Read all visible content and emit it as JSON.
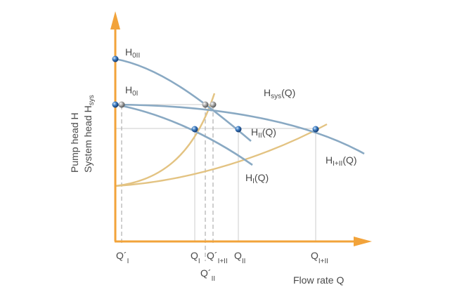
{
  "axes": {
    "y_label_line1": "Pump head H",
    "y_label_line2_main": "System head H",
    "y_label_line2_sub": "sys",
    "x_label": "Flow rate Q"
  },
  "curves": {
    "H0II": {
      "main": "H",
      "sub": "0II"
    },
    "H0I": {
      "main": "H",
      "sub": "0I"
    },
    "Hsys": {
      "main": "H",
      "sub": "sys",
      "tail": "(Q)"
    },
    "HII": {
      "main": "H",
      "sub": "II",
      "tail": "(Q)"
    },
    "HI": {
      "main": "H",
      "sub": "I",
      "tail": "(Q)"
    },
    "HIplusII": {
      "main": "H",
      "sub": "I+II",
      "tail": "(Q)"
    }
  },
  "x_ticks": {
    "q_prime_I": {
      "main": "Q´",
      "sub": "I"
    },
    "q_I": {
      "main": "Q",
      "sub": "I"
    },
    "q_prime_IplusII": {
      "main": "Q´",
      "sub": "I+II"
    },
    "q_II": {
      "main": "Q",
      "sub": "II"
    },
    "q_prime_II": {
      "main": "Q´",
      "sub": "II"
    },
    "q_IplusII": {
      "main": "Q",
      "sub": "I+II"
    }
  },
  "colors": {
    "axis": "#f2a33a",
    "pump_curve": "#89a9c3",
    "system_curve": "#e3c382",
    "point_blue": "#2f6db3",
    "point_grey": "#9a9a9a"
  }
}
